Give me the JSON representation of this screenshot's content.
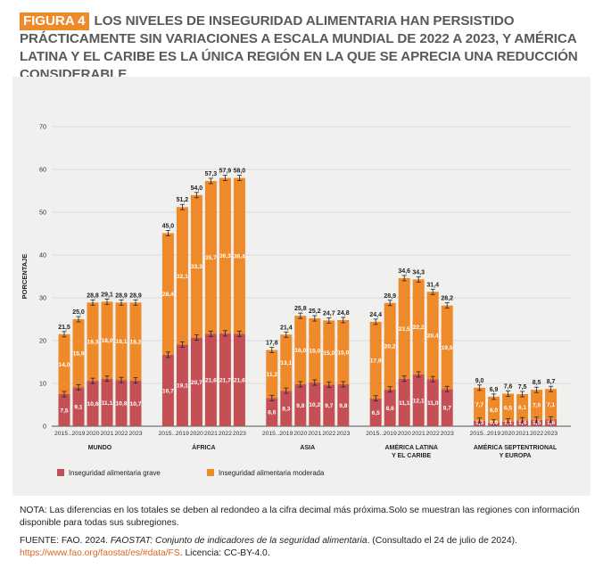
{
  "header": {
    "figure_label": "FIGURA 4",
    "title": "LOS NIVELES DE INSEGURIDAD ALIMENTARIA HAN PERSISTIDO PRÁCTICAMENTE SIN VARIACIONES A ESCALA MUNDIAL DE 2022 A 2023, Y AMÉRICA LATINA Y EL CARIBE ES LA ÚNICA REGIÓN EN LA QUE SE APRECIA UNA REDUCCIÓN CONSIDERABLE"
  },
  "colors": {
    "severe": "#c44f55",
    "moderate": "#ef8a2a",
    "panel": "#f0f0ef",
    "accent": "#ef8a2a"
  },
  "chart_data": {
    "type": "bar",
    "stacked": true,
    "ylabel": "PORCENTAJE",
    "ylim": [
      0,
      70
    ],
    "yticks": [
      0,
      10,
      20,
      30,
      40,
      50,
      60,
      70
    ],
    "grid": true,
    "legend_position": "bottom-left",
    "series": [
      {
        "name": "Inseguridad alimentaria grave",
        "key": "severe"
      },
      {
        "name": "Inseguridad alimentaria moderada",
        "key": "moderate"
      }
    ],
    "groups": [
      {
        "name": "MUNDO",
        "categories": [
          "2015…",
          "2019",
          "2020",
          "2021",
          "2022",
          "2023"
        ],
        "severe": [
          7.5,
          9.1,
          10.6,
          11.1,
          10.8,
          10.7
        ],
        "moderate": [
          14.0,
          15.9,
          18.3,
          18.0,
          18.1,
          18.2
        ],
        "totals": [
          "21,5",
          "25,0",
          "28,8",
          "29,1",
          "28,9",
          "28,9"
        ],
        "severe_labels": [
          "7,5",
          "9,1",
          "10,6",
          "11,1",
          "10,8",
          "10,7"
        ],
        "moderate_labels": [
          "14,0",
          "15,9",
          "18,3",
          "18,0",
          "18,1",
          "18,2"
        ]
      },
      {
        "name": "ÁFRICA",
        "categories": [
          "2015…",
          "2019",
          "2020",
          "2021",
          "2022",
          "2023"
        ],
        "severe": [
          16.7,
          19.1,
          20.7,
          21.6,
          21.7,
          21.6
        ],
        "moderate": [
          28.4,
          32.1,
          33.3,
          35.7,
          36.3,
          36.4
        ],
        "totals": [
          "45,0",
          "51,2",
          "54,0",
          "57,3",
          "57,9",
          "58,0"
        ],
        "severe_labels": [
          "16,7",
          "19,1",
          "20,7",
          "21,6",
          "21,7",
          "21,6"
        ],
        "moderate_labels": [
          "28,4",
          "32,1",
          "33,3",
          "35,7",
          "36,3",
          "36,4"
        ]
      },
      {
        "name": "ASIA",
        "categories": [
          "2015…",
          "2019",
          "2020",
          "2021",
          "2022",
          "2023"
        ],
        "severe": [
          6.6,
          8.3,
          9.8,
          10.2,
          9.7,
          9.8
        ],
        "moderate": [
          11.2,
          13.1,
          16.0,
          15.0,
          15.0,
          15.0
        ],
        "totals": [
          "17,8",
          "21,4",
          "25,8",
          "25,2",
          "24,7",
          "24,8"
        ],
        "severe_labels": [
          "6,6",
          "8,3",
          "9,8",
          "10,2",
          "9,7",
          "9,8"
        ],
        "moderate_labels": [
          "11,2",
          "13,1",
          "16,0",
          "15,0",
          "15,0",
          "15,0"
        ]
      },
      {
        "name": "AMÉRICA LATINA Y EL CARIBE",
        "name_lines": [
          "AMÉRICA LATINA",
          "Y EL CARIBE"
        ],
        "categories": [
          "2015…",
          "2019",
          "2020",
          "2021",
          "2022",
          "2023"
        ],
        "severe": [
          6.5,
          8.6,
          11.1,
          12.1,
          11.0,
          8.7
        ],
        "moderate": [
          17.9,
          20.2,
          23.5,
          22.2,
          20.4,
          19.5
        ],
        "totals": [
          "24,4",
          "28,9",
          "34,6",
          "34,3",
          "31,4",
          "28,2"
        ],
        "severe_labels": [
          "6,5",
          "8,6",
          "11,1",
          "12,1",
          "11,0",
          "8,7"
        ],
        "moderate_labels": [
          "17,9",
          "20,2",
          "23,5",
          "22,2",
          "20,4",
          "19,5"
        ]
      },
      {
        "name": "AMÉRICA SEPTENTRIONAL Y EUROPA",
        "name_lines": [
          "AMÉRICA SEPTENTRIONAL",
          "Y EUROPA"
        ],
        "categories": [
          "2015…",
          "2019",
          "2020",
          "2021",
          "2022",
          "2023"
        ],
        "severe": [
          1.3,
          0.9,
          1.1,
          1.4,
          1.5,
          1.6
        ],
        "moderate": [
          7.7,
          6.0,
          6.5,
          6.1,
          7.0,
          7.1
        ],
        "totals": [
          "9,0",
          "6,9",
          "7,6",
          "7,5",
          "8,5",
          "8,7"
        ],
        "severe_labels": [
          "1,3",
          "0,9",
          "1,1",
          "1,4",
          "1,5",
          "1,6"
        ],
        "moderate_labels": [
          "7,7",
          "6,0",
          "6,5",
          "6,1",
          "7,0",
          "7,1"
        ]
      }
    ]
  },
  "footer": {
    "note": "NOTA: Las diferencias en los totales se deben al redondeo a la cifra decimal más próxima.Solo se muestran las regiones con información disponible para todas sus subregiones.",
    "source_prefix": "FUENTE: FAO. 2024. ",
    "source_italic": "FAOSTAT: Conjunto de indicadores de la seguridad alimentaria",
    "source_suffix": ". (Consultado el 24 de julio de 2024).",
    "source_link": "https://www.fao.org/faostat/es/#data/FS",
    "source_license": ". Licencia: CC-BY-4.0."
  }
}
